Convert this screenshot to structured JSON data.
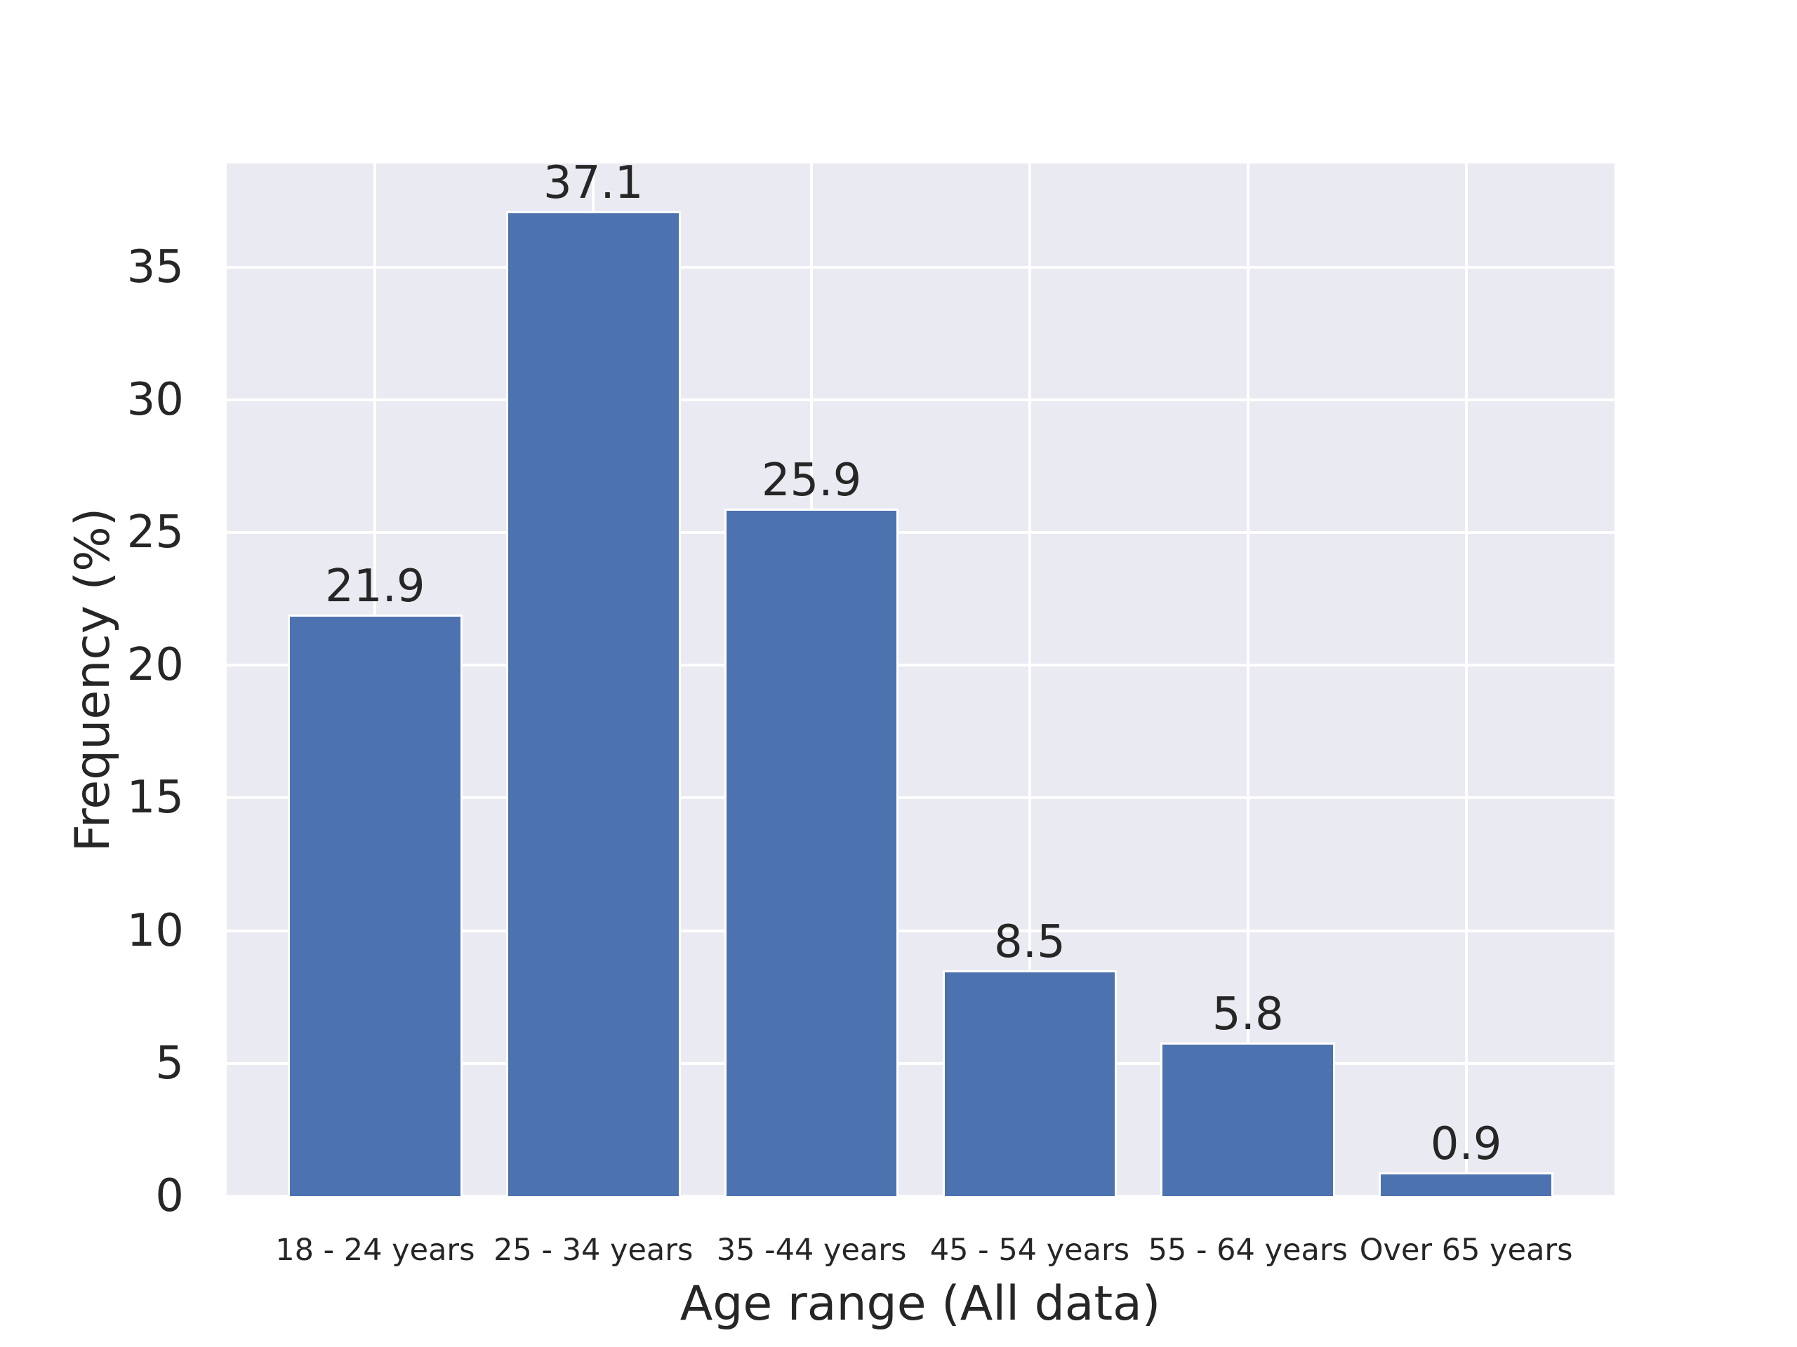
{
  "chart_data": {
    "type": "bar",
    "categories": [
      "18 - 24 years",
      "25 - 34 years",
      "35 -44 years",
      "45 - 54 years",
      "55 - 64 years",
      "Over 65 years"
    ],
    "values": [
      21.9,
      37.1,
      25.9,
      8.5,
      5.8,
      0.9
    ],
    "bar_labels": [
      "21.9",
      "37.1",
      "25.9",
      "8.5",
      "5.8",
      "0.9"
    ],
    "title": "",
    "xlabel": "Age range (All data)",
    "ylabel": "Frequency (%)",
    "yticks": [
      0,
      5,
      10,
      15,
      20,
      25,
      30,
      35
    ],
    "ylim": [
      0,
      38.9
    ],
    "xlim": [
      -0.68,
      5.68
    ],
    "bar_width": 0.8,
    "grid": true,
    "legend": null,
    "style": {
      "figure_bg": "#ffffff",
      "plot_bg": "#eaeaf2",
      "grid_color": "#ffffff",
      "bar_color": "#4c72b0",
      "bar_edge_color": "#ffffff",
      "text_color": "#262626"
    }
  }
}
